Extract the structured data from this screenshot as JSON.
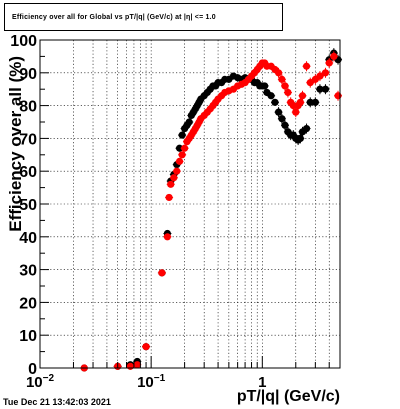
{
  "canvas": {
    "title": "Efficiency over all for Global vs pT/|q| (GeV/c) at |η| <= 1.0",
    "timestamp": "Tue Dec 21 13:42:03 2021"
  },
  "colors": {
    "series_black": "#000000",
    "series_red": "#ff0000",
    "grid": "#000000",
    "frame": "#000000"
  },
  "chart_data": {
    "type": "scatter",
    "title": "Efficiency over all for Global vs pT/|q| (GeV/c) at |η| <= 1.0",
    "xlabel": "pT/|q| (GeV/c)",
    "ylabel": "Efficiency over all (%)",
    "xscale": "log",
    "xlim": [
      0.01,
      5.0
    ],
    "ylim": [
      0,
      100
    ],
    "grid": true,
    "legend": "none",
    "x_ticks": [
      {
        "label_base": "10",
        "label_exp": "−2",
        "value": 0.01
      },
      {
        "label_base": "10",
        "label_exp": "−1",
        "value": 0.1
      },
      {
        "label_base": "1",
        "label_exp": "",
        "value": 1
      }
    ],
    "y_ticks": [
      0,
      10,
      20,
      30,
      40,
      50,
      60,
      70,
      80,
      90,
      100
    ],
    "series": [
      {
        "color": "#000000",
        "points": [
          [
            0.025,
            0
          ],
          [
            0.05,
            0.5
          ],
          [
            0.065,
            1
          ],
          [
            0.075,
            2
          ],
          [
            0.09,
            6.5
          ],
          [
            0.125,
            29
          ],
          [
            0.14,
            41
          ],
          [
            0.15,
            57
          ],
          [
            0.16,
            59
          ],
          [
            0.17,
            62
          ],
          [
            0.18,
            67
          ],
          [
            0.19,
            71
          ],
          [
            0.2,
            73
          ],
          [
            0.21,
            74
          ],
          [
            0.22,
            75
          ],
          [
            0.23,
            77
          ],
          [
            0.24,
            78
          ],
          [
            0.25,
            79
          ],
          [
            0.26,
            80
          ],
          [
            0.27,
            81
          ],
          [
            0.28,
            82
          ],
          [
            0.3,
            83
          ],
          [
            0.32,
            84
          ],
          [
            0.34,
            85
          ],
          [
            0.36,
            86
          ],
          [
            0.38,
            86
          ],
          [
            0.4,
            87
          ],
          [
            0.43,
            87
          ],
          [
            0.46,
            88
          ],
          [
            0.5,
            88
          ],
          [
            0.55,
            89
          ],
          [
            0.6,
            88.5
          ],
          [
            0.65,
            88
          ],
          [
            0.7,
            88.5
          ],
          [
            0.75,
            88
          ],
          [
            0.8,
            88
          ],
          [
            0.85,
            87
          ],
          [
            0.9,
            87
          ],
          [
            0.95,
            86
          ],
          [
            1.0,
            86
          ],
          [
            1.05,
            86
          ],
          [
            1.1,
            84
          ],
          [
            1.2,
            83
          ],
          [
            1.3,
            81
          ],
          [
            1.4,
            78
          ],
          [
            1.5,
            76
          ],
          [
            1.6,
            74
          ],
          [
            1.7,
            72
          ],
          [
            1.8,
            71
          ],
          [
            1.9,
            71
          ],
          [
            2.0,
            70
          ],
          [
            2.1,
            69.5
          ],
          [
            2.2,
            70
          ],
          [
            2.3,
            72
          ],
          [
            2.5,
            73
          ],
          [
            2.7,
            81
          ],
          [
            3.0,
            81
          ],
          [
            3.3,
            85
          ],
          [
            3.7,
            85
          ],
          [
            4.0,
            94
          ],
          [
            4.4,
            96
          ],
          [
            4.8,
            94
          ]
        ]
      },
      {
        "color": "#ff0000",
        "points": [
          [
            0.025,
            0
          ],
          [
            0.05,
            0.5
          ],
          [
            0.065,
            0.5
          ],
          [
            0.075,
            1
          ],
          [
            0.09,
            6.5
          ],
          [
            0.125,
            29
          ],
          [
            0.14,
            40
          ],
          [
            0.145,
            52
          ],
          [
            0.15,
            56
          ],
          [
            0.16,
            58
          ],
          [
            0.17,
            60
          ],
          [
            0.18,
            63
          ],
          [
            0.19,
            65
          ],
          [
            0.2,
            67
          ],
          [
            0.21,
            69
          ],
          [
            0.22,
            70
          ],
          [
            0.23,
            71
          ],
          [
            0.24,
            72
          ],
          [
            0.25,
            73
          ],
          [
            0.26,
            74
          ],
          [
            0.27,
            75
          ],
          [
            0.28,
            76
          ],
          [
            0.3,
            77
          ],
          [
            0.32,
            78
          ],
          [
            0.34,
            79
          ],
          [
            0.36,
            80
          ],
          [
            0.38,
            81
          ],
          [
            0.4,
            82
          ],
          [
            0.43,
            83
          ],
          [
            0.46,
            84
          ],
          [
            0.5,
            84.5
          ],
          [
            0.55,
            85
          ],
          [
            0.6,
            86
          ],
          [
            0.65,
            86.5
          ],
          [
            0.7,
            87
          ],
          [
            0.75,
            88
          ],
          [
            0.8,
            89
          ],
          [
            0.85,
            90
          ],
          [
            0.9,
            91
          ],
          [
            0.95,
            92
          ],
          [
            1.0,
            93
          ],
          [
            1.05,
            93
          ],
          [
            1.1,
            92
          ],
          [
            1.2,
            92
          ],
          [
            1.3,
            91
          ],
          [
            1.4,
            90
          ],
          [
            1.5,
            88
          ],
          [
            1.6,
            86
          ],
          [
            1.7,
            84
          ],
          [
            1.8,
            81
          ],
          [
            1.9,
            80
          ],
          [
            2.0,
            78
          ],
          [
            2.1,
            80
          ],
          [
            2.2,
            81
          ],
          [
            2.3,
            83
          ],
          [
            2.5,
            92
          ],
          [
            2.7,
            87
          ],
          [
            3.0,
            88
          ],
          [
            3.3,
            89
          ],
          [
            3.7,
            90
          ],
          [
            4.0,
            93
          ],
          [
            4.4,
            95
          ],
          [
            4.8,
            83
          ]
        ]
      }
    ]
  }
}
